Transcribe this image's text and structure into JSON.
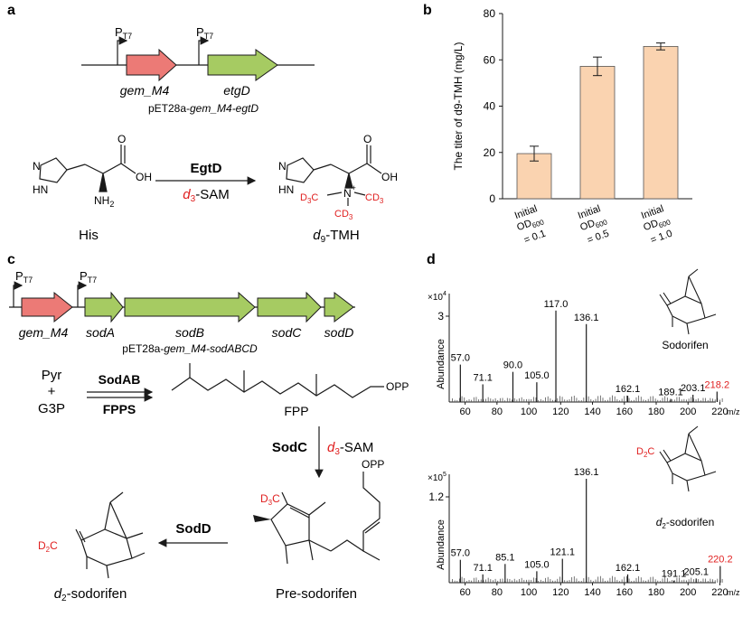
{
  "panels": {
    "a": "a",
    "b": "b",
    "c": "c",
    "d": "d"
  },
  "panel_a": {
    "promoter": "P",
    "promoter_sub": "T7",
    "gene1": "gem_M4",
    "gene2": "etgD",
    "plasmid_prefix": "pET28a-",
    "plasmid_italic": "gem_M4-egtD",
    "enzyme": "EgtD",
    "cofactor_d": "d",
    "cofactor_sub": "3",
    "cofactor_rest": "-SAM",
    "substrate": "His",
    "product_d": "d",
    "product_sub": "9",
    "product_rest": "-TMH"
  },
  "panel_c": {
    "promoter": "P",
    "promoter_sub": "T7",
    "genes": [
      "gem_M4",
      "sodA",
      "sodB",
      "sodC",
      "sodD"
    ],
    "plasmid_prefix": "pET28a-",
    "plasmid_italic": "gem_M4-sodABCD",
    "pyr": "Pyr",
    "plus": "+",
    "g3p": "G3P",
    "enzyme1": "SodAB",
    "enzyme2": "FPPS",
    "fpp": "FPP",
    "opp": "OPP",
    "enzyme3": "SodC",
    "cofactor_d": "d",
    "cofactor_sub": "3",
    "cofactor_rest": "-SAM",
    "enzyme4": "SodD",
    "presodorifen": "Pre-sodorifen",
    "product_d": "d",
    "product_sub": "2",
    "product_rest": "-sodorifen",
    "d2c": "D",
    "d2c_sub": "2",
    "d2c_c": "C",
    "d3c": "D",
    "d3c_sub": "3",
    "d3c_c": "C"
  },
  "chart_data": [
    {
      "type": "bar",
      "categories": [
        "Initial OD600 = 0.1",
        "Initial OD600 = 0.5",
        "Initial OD600 = 1.0"
      ],
      "values": [
        19.5,
        57.2,
        65.8
      ],
      "errors": [
        3.2,
        4.0,
        1.5
      ],
      "ylabel": "The titer of d9-TMH (mg/L)",
      "ylim": [
        0,
        80
      ],
      "yticks": [
        0,
        20,
        40,
        60,
        80
      ],
      "bar_color": "#fad3b0"
    },
    {
      "type": "mass_spectrum",
      "compound": "Sodorifen",
      "ylabel": "Abundance",
      "y_multiplier": "×10",
      "y_exp": "4",
      "ytick_label": "3",
      "xlabel": "m/z",
      "xlim": [
        50,
        222
      ],
      "xticks": [
        60,
        80,
        100,
        120,
        140,
        160,
        180,
        200,
        220
      ],
      "labeled_peaks": [
        {
          "mz": 57.0,
          "rel": 0.36,
          "label": "57.0"
        },
        {
          "mz": 71.1,
          "rel": 0.17,
          "label": "71.1"
        },
        {
          "mz": 90.0,
          "rel": 0.29,
          "label": "90.0"
        },
        {
          "mz": 105.0,
          "rel": 0.19,
          "label": "105.0"
        },
        {
          "mz": 117.0,
          "rel": 0.88,
          "label": "117.0"
        },
        {
          "mz": 136.1,
          "rel": 0.75,
          "label": "136.1"
        },
        {
          "mz": 162.1,
          "rel": 0.06,
          "label": "162.1"
        },
        {
          "mz": 189.1,
          "rel": 0.03,
          "label": "189.1"
        },
        {
          "mz": 203.1,
          "rel": 0.07,
          "label": "203.1"
        },
        {
          "mz": 218.2,
          "rel": 0.1,
          "label": "218.2",
          "highlight": true
        }
      ]
    },
    {
      "type": "mass_spectrum",
      "compound": "d2-sodorifen",
      "ylabel": "Abundance",
      "y_multiplier": "×10",
      "y_exp": "5",
      "ytick_label": "1.2",
      "xlabel": "m/z",
      "xlim": [
        50,
        222
      ],
      "xticks": [
        60,
        80,
        100,
        120,
        140,
        160,
        180,
        200,
        220
      ],
      "labeled_peaks": [
        {
          "mz": 57.0,
          "rel": 0.22,
          "label": "57.0"
        },
        {
          "mz": 71.1,
          "rel": 0.08,
          "label": "71.1"
        },
        {
          "mz": 85.1,
          "rel": 0.18,
          "label": "85.1"
        },
        {
          "mz": 105.0,
          "rel": 0.11,
          "label": "105.0"
        },
        {
          "mz": 121.1,
          "rel": 0.23,
          "label": "121.1"
        },
        {
          "mz": 136.1,
          "rel": 1.0,
          "label": "136.1"
        },
        {
          "mz": 162.1,
          "rel": 0.08,
          "label": "162.1"
        },
        {
          "mz": 191.1,
          "rel": 0.02,
          "label": "191.1"
        },
        {
          "mz": 205.1,
          "rel": 0.04,
          "label": "205.1"
        },
        {
          "mz": 220.2,
          "rel": 0.16,
          "label": "220.2",
          "highlight": true
        }
      ]
    }
  ]
}
